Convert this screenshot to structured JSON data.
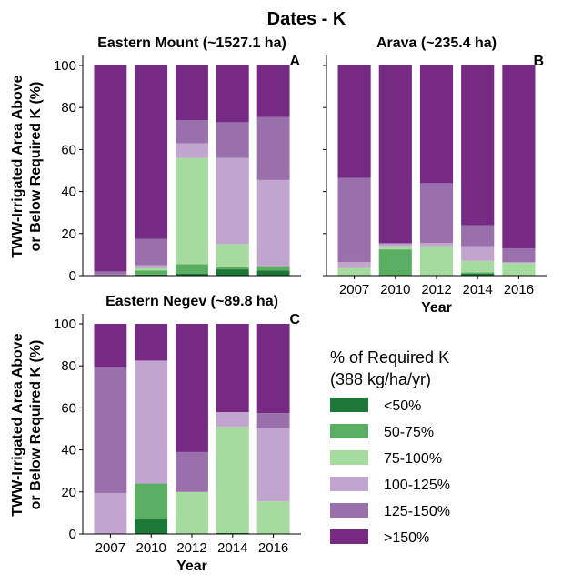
{
  "figure": {
    "title": "Dates - K",
    "ylabel_line1": "TWW-Irrigated Area Above",
    "ylabel_line2": "or Below Required K (%)",
    "xlabel": "Year"
  },
  "legend": {
    "title_line1": "% of Required K",
    "title_line2": "(388 kg/ha/yr)",
    "items": [
      {
        "label": "<50%",
        "color": "#1b7837"
      },
      {
        "label": "50-75%",
        "color": "#5aae61"
      },
      {
        "label": "75-100%",
        "color": "#a6dba0"
      },
      {
        "label": "100-125%",
        "color": "#c2a5cf"
      },
      {
        "label": "125-150%",
        "color": "#9970ab"
      },
      {
        "label": ">150%",
        "color": "#762a83"
      }
    ]
  },
  "chart_data": [
    {
      "type": "bar",
      "stacked": true,
      "title": "Eastern Mount (~1527.1 ha)",
      "letter": "A",
      "categories": [
        "2007",
        "2010",
        "2012",
        "2014",
        "2016"
      ],
      "ylim": [
        0,
        100
      ],
      "yticks": [
        "0",
        "20",
        "40",
        "60",
        "80",
        "100"
      ],
      "series": [
        {
          "name": "<50%",
          "values": [
            0,
            0.5,
            1,
            3,
            2.5
          ]
        },
        {
          "name": "50-75%",
          "values": [
            0,
            2,
            4.5,
            1,
            2
          ]
        },
        {
          "name": "75-100%",
          "values": [
            0,
            1,
            50.5,
            11,
            0
          ]
        },
        {
          "name": "100-125%",
          "values": [
            0.5,
            1.5,
            7,
            41,
            41
          ]
        },
        {
          "name": "125-150%",
          "values": [
            1.5,
            12.5,
            11,
            17,
            30
          ]
        },
        {
          "name": ">150%",
          "values": [
            98,
            82.5,
            26,
            27,
            24.5
          ]
        }
      ]
    },
    {
      "type": "bar",
      "stacked": true,
      "title": "Arava (~235.4 ha)",
      "letter": "B",
      "categories": [
        "2007",
        "2010",
        "2012",
        "2014",
        "2016"
      ],
      "ylim": [
        0,
        100
      ],
      "yticks": [
        "0",
        "20",
        "40",
        "60",
        "80",
        "100"
      ],
      "series": [
        {
          "name": "<50%",
          "values": [
            0,
            0,
            0,
            1,
            0
          ]
        },
        {
          "name": "50-75%",
          "values": [
            0,
            12.5,
            0,
            0.5,
            0
          ]
        },
        {
          "name": "75-100%",
          "values": [
            3.5,
            1.5,
            14,
            5.5,
            6
          ]
        },
        {
          "name": "100-125%",
          "values": [
            3,
            1,
            1.5,
            7,
            0.5
          ]
        },
        {
          "name": "125-150%",
          "values": [
            40,
            0.5,
            28.5,
            10,
            6.5
          ]
        },
        {
          "name": ">150%",
          "values": [
            53.5,
            84.5,
            56,
            76,
            87
          ]
        }
      ]
    },
    {
      "type": "bar",
      "stacked": true,
      "title": "Eastern Negev (~89.8 ha)",
      "letter": "C",
      "categories": [
        "2007",
        "2010",
        "2012",
        "2014",
        "2016"
      ],
      "ylim": [
        0,
        100
      ],
      "yticks": [
        "0",
        "20",
        "40",
        "60",
        "80",
        "100"
      ],
      "series": [
        {
          "name": "<50%",
          "values": [
            0,
            7,
            0,
            0.5,
            0
          ]
        },
        {
          "name": "50-75%",
          "values": [
            0,
            17,
            0,
            0,
            0
          ]
        },
        {
          "name": "75-100%",
          "values": [
            0,
            0,
            20,
            50.5,
            15.5
          ]
        },
        {
          "name": "100-125%",
          "values": [
            19.5,
            58.5,
            0,
            7,
            35
          ]
        },
        {
          "name": "125-150%",
          "values": [
            60,
            0,
            19,
            0,
            7
          ]
        },
        {
          "name": ">150%",
          "values": [
            20.5,
            17.5,
            61,
            42,
            42.5
          ]
        }
      ]
    }
  ]
}
